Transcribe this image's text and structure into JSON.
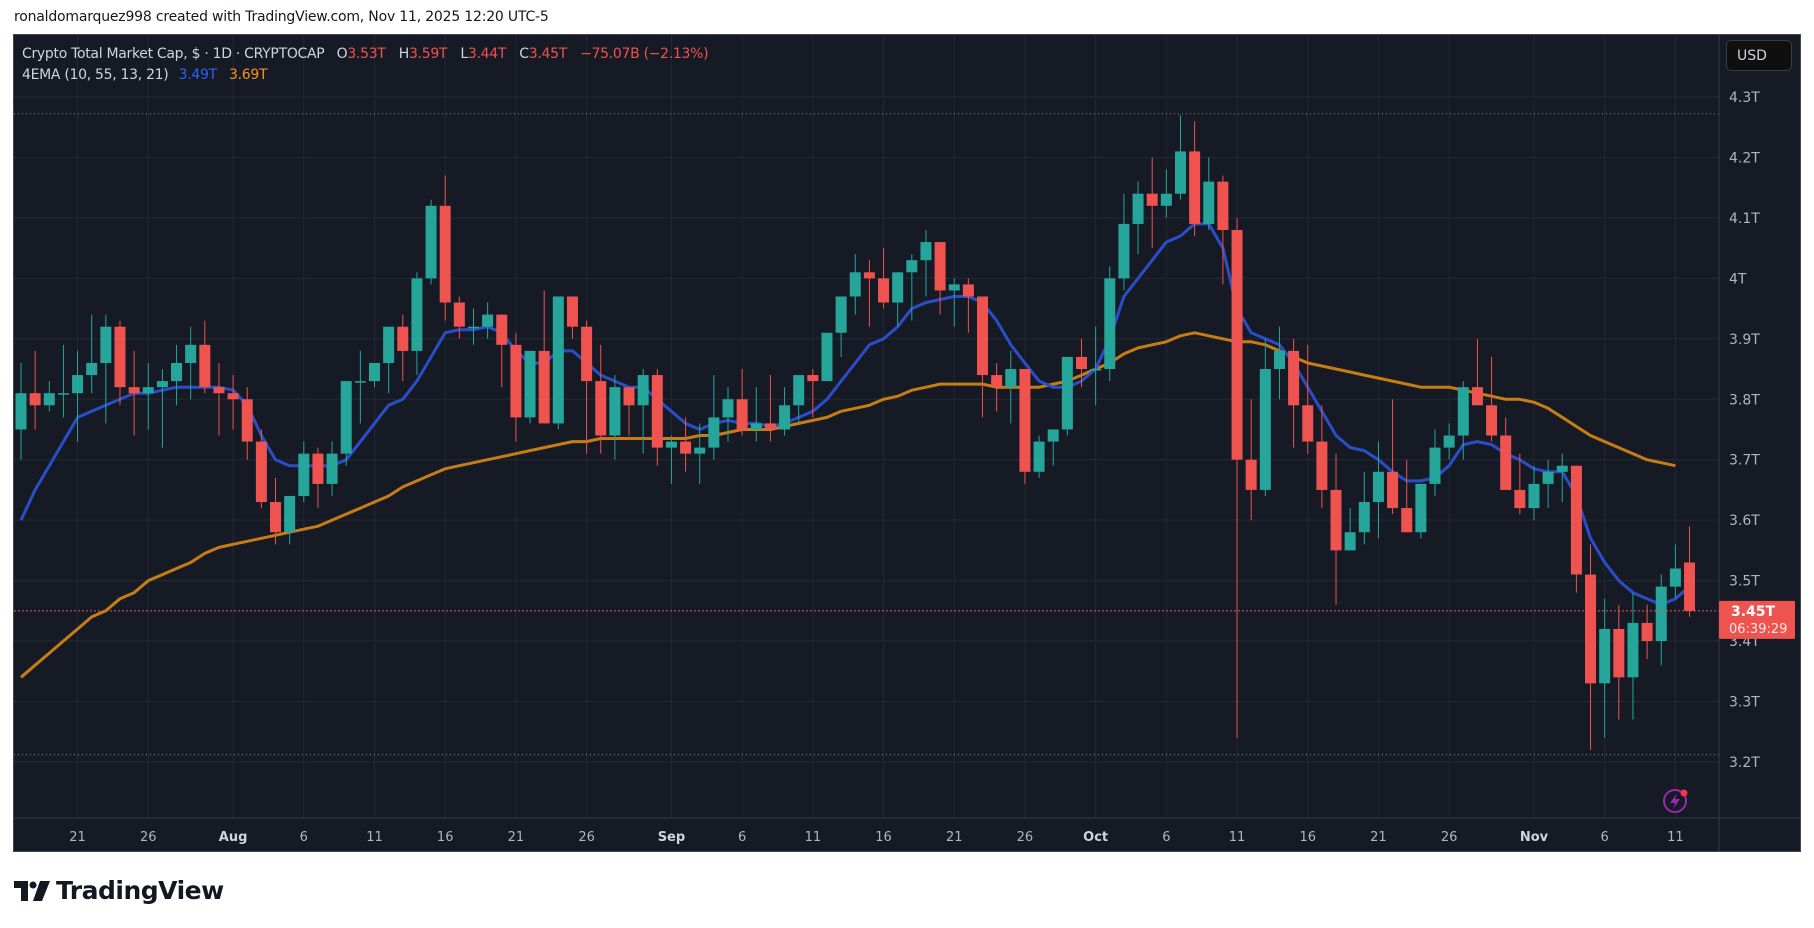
{
  "credit": "ronaldomarquez998 created with TradingView.com, Nov 11, 2025 12:20 UTC-5",
  "legend": {
    "symbol": "Crypto Total Market Cap, $ · 1D · CRYPTOCAP",
    "o_label": "O",
    "o": "3.53T",
    "h_label": "H",
    "h": "3.59T",
    "l_label": "L",
    "l": "3.44T",
    "c_label": "C",
    "c": "3.45T",
    "change": "−75.07B (−2.13%)",
    "indicator": "4EMA (10, 55, 13, 21)",
    "ema_fast": "3.49T",
    "ema_slow": "3.69T"
  },
  "currency_button": "USD",
  "price_label": {
    "value": "3.45T",
    "countdown": "06:39:29"
  },
  "logo_text": "TradingView",
  "colors": {
    "background": "#161a25",
    "grid": "#242833",
    "up": "#26a69a",
    "down": "#ef5350",
    "ema_fast": "#2a4ec9",
    "ema_slow": "#c67d16",
    "axis_text": "#b2b5be",
    "price_line": "#ef5350"
  },
  "chart_data": {
    "type": "candlestick",
    "title": "Crypto Total Market Cap, $ · 1D · CRYPTOCAP",
    "ylabel": "USD",
    "ylim": [
      3.11,
      4.36
    ],
    "y_ticks": [
      "4.3T",
      "4.2T",
      "4.1T",
      "4T",
      "3.9T",
      "3.8T",
      "3.7T",
      "3.6T",
      "3.5T",
      "3.4T",
      "3.3T",
      "3.2T"
    ],
    "y_tick_values": [
      4.3,
      4.2,
      4.1,
      4.0,
      3.9,
      3.8,
      3.7,
      3.6,
      3.5,
      3.4,
      3.3,
      3.2
    ],
    "x_ticks": [
      {
        "label": "21",
        "day": 4
      },
      {
        "label": "26",
        "day": 9
      },
      {
        "label": "Aug",
        "day": 15,
        "bold": true
      },
      {
        "label": "6",
        "day": 20
      },
      {
        "label": "11",
        "day": 25
      },
      {
        "label": "16",
        "day": 30
      },
      {
        "label": "21",
        "day": 35
      },
      {
        "label": "26",
        "day": 40
      },
      {
        "label": "Sep",
        "day": 46,
        "bold": true
      },
      {
        "label": "6",
        "day": 51
      },
      {
        "label": "11",
        "day": 56
      },
      {
        "label": "16",
        "day": 61
      },
      {
        "label": "21",
        "day": 66
      },
      {
        "label": "26",
        "day": 71
      },
      {
        "label": "Oct",
        "day": 76,
        "bold": true
      },
      {
        "label": "6",
        "day": 81
      },
      {
        "label": "11",
        "day": 86
      },
      {
        "label": "16",
        "day": 91
      },
      {
        "label": "21",
        "day": 96
      },
      {
        "label": "26",
        "day": 101
      },
      {
        "label": "Nov",
        "day": 107,
        "bold": true
      },
      {
        "label": "6",
        "day": 112
      },
      {
        "label": "11",
        "day": 117
      }
    ],
    "start_date": "Jul 17",
    "end_date": "Nov 11",
    "high_line": 4.272,
    "low_line": 3.212,
    "last_price": 3.45,
    "candles": [
      [
        3.75,
        3.86,
        3.7,
        3.81
      ],
      [
        3.81,
        3.88,
        3.75,
        3.79
      ],
      [
        3.79,
        3.83,
        3.78,
        3.81
      ],
      [
        3.81,
        3.89,
        3.77,
        3.81
      ],
      [
        3.81,
        3.88,
        3.73,
        3.84
      ],
      [
        3.84,
        3.94,
        3.81,
        3.86
      ],
      [
        3.86,
        3.94,
        3.76,
        3.92
      ],
      [
        3.92,
        3.93,
        3.79,
        3.82
      ],
      [
        3.82,
        3.88,
        3.74,
        3.81
      ],
      [
        3.81,
        3.86,
        3.75,
        3.82
      ],
      [
        3.82,
        3.85,
        3.72,
        3.83
      ],
      [
        3.83,
        3.89,
        3.79,
        3.86
      ],
      [
        3.86,
        3.92,
        3.8,
        3.89
      ],
      [
        3.89,
        3.93,
        3.81,
        3.82
      ],
      [
        3.82,
        3.86,
        3.74,
        3.81
      ],
      [
        3.81,
        3.84,
        3.75,
        3.8
      ],
      [
        3.8,
        3.82,
        3.7,
        3.73
      ],
      [
        3.73,
        3.75,
        3.62,
        3.63
      ],
      [
        3.63,
        3.67,
        3.56,
        3.58
      ],
      [
        3.58,
        3.62,
        3.56,
        3.64
      ],
      [
        3.64,
        3.73,
        3.63,
        3.71
      ],
      [
        3.71,
        3.72,
        3.62,
        3.66
      ],
      [
        3.66,
        3.73,
        3.64,
        3.71
      ],
      [
        3.71,
        3.82,
        3.69,
        3.83
      ],
      [
        3.83,
        3.88,
        3.76,
        3.83
      ],
      [
        3.83,
        3.86,
        3.82,
        3.86
      ],
      [
        3.86,
        3.91,
        3.81,
        3.92
      ],
      [
        3.92,
        3.94,
        3.83,
        3.88
      ],
      [
        3.88,
        4.01,
        3.84,
        4.0
      ],
      [
        4.0,
        4.13,
        3.99,
        4.12
      ],
      [
        4.12,
        4.17,
        3.93,
        3.96
      ],
      [
        3.96,
        3.97,
        3.9,
        3.92
      ],
      [
        3.92,
        3.95,
        3.89,
        3.92
      ],
      [
        3.92,
        3.96,
        3.9,
        3.94
      ],
      [
        3.94,
        3.94,
        3.82,
        3.89
      ],
      [
        3.89,
        3.91,
        3.73,
        3.77
      ],
      [
        3.77,
        3.87,
        3.76,
        3.88
      ],
      [
        3.88,
        3.98,
        3.76,
        3.76
      ],
      [
        3.76,
        3.86,
        3.75,
        3.97
      ],
      [
        3.97,
        3.97,
        3.9,
        3.92
      ],
      [
        3.92,
        3.93,
        3.71,
        3.83
      ],
      [
        3.83,
        3.89,
        3.71,
        3.74
      ],
      [
        3.74,
        3.84,
        3.7,
        3.82
      ],
      [
        3.82,
        3.81,
        3.74,
        3.79
      ],
      [
        3.79,
        3.85,
        3.71,
        3.84
      ],
      [
        3.84,
        3.85,
        3.69,
        3.72
      ],
      [
        3.72,
        3.74,
        3.66,
        3.73
      ],
      [
        3.73,
        3.77,
        3.68,
        3.71
      ],
      [
        3.71,
        3.76,
        3.66,
        3.72
      ],
      [
        3.72,
        3.84,
        3.7,
        3.77
      ],
      [
        3.77,
        3.82,
        3.73,
        3.8
      ],
      [
        3.8,
        3.85,
        3.74,
        3.75
      ],
      [
        3.75,
        3.82,
        3.73,
        3.76
      ],
      [
        3.76,
        3.84,
        3.73,
        3.75
      ],
      [
        3.75,
        3.82,
        3.74,
        3.79
      ],
      [
        3.79,
        3.83,
        3.76,
        3.84
      ],
      [
        3.84,
        3.85,
        3.77,
        3.83
      ],
      [
        3.83,
        3.91,
        3.83,
        3.91
      ],
      [
        3.91,
        3.96,
        3.87,
        3.97
      ],
      [
        3.97,
        4.04,
        3.94,
        4.01
      ],
      [
        4.01,
        4.03,
        3.92,
        4.0
      ],
      [
        4.0,
        4.05,
        3.95,
        3.96
      ],
      [
        3.96,
        4.01,
        3.92,
        4.01
      ],
      [
        4.01,
        4.04,
        3.93,
        4.03
      ],
      [
        4.03,
        4.08,
        3.97,
        4.06
      ],
      [
        4.06,
        4.05,
        3.94,
        3.98
      ],
      [
        3.98,
        4.0,
        3.92,
        3.99
      ],
      [
        3.99,
        4.0,
        3.91,
        3.97
      ],
      [
        3.97,
        3.97,
        3.77,
        3.84
      ],
      [
        3.84,
        3.86,
        3.78,
        3.82
      ],
      [
        3.82,
        3.88,
        3.76,
        3.85
      ],
      [
        3.85,
        3.85,
        3.66,
        3.68
      ],
      [
        3.68,
        3.74,
        3.67,
        3.73
      ],
      [
        3.73,
        3.74,
        3.69,
        3.75
      ],
      [
        3.75,
        3.84,
        3.74,
        3.87
      ],
      [
        3.87,
        3.9,
        3.82,
        3.85
      ],
      [
        3.85,
        3.92,
        3.79,
        3.85
      ],
      [
        3.85,
        4.02,
        3.83,
        4.0
      ],
      [
        4.0,
        4.14,
        3.98,
        4.09
      ],
      [
        4.09,
        4.16,
        4.04,
        4.14
      ],
      [
        4.14,
        4.2,
        4.05,
        4.12
      ],
      [
        4.12,
        4.18,
        4.1,
        4.14
      ],
      [
        4.14,
        4.27,
        4.13,
        4.21
      ],
      [
        4.21,
        4.26,
        4.07,
        4.09
      ],
      [
        4.09,
        4.2,
        4.08,
        4.16
      ],
      [
        4.16,
        4.17,
        3.99,
        4.08
      ],
      [
        4.08,
        4.1,
        3.24,
        3.7
      ],
      [
        3.7,
        3.8,
        3.6,
        3.65
      ],
      [
        3.65,
        3.9,
        3.64,
        3.85
      ],
      [
        3.85,
        3.92,
        3.8,
        3.88
      ],
      [
        3.88,
        3.9,
        3.72,
        3.79
      ],
      [
        3.79,
        3.89,
        3.71,
        3.73
      ],
      [
        3.73,
        3.79,
        3.62,
        3.65
      ],
      [
        3.65,
        3.71,
        3.46,
        3.55
      ],
      [
        3.55,
        3.62,
        3.55,
        3.58
      ],
      [
        3.58,
        3.68,
        3.56,
        3.63
      ],
      [
        3.63,
        3.73,
        3.57,
        3.68
      ],
      [
        3.68,
        3.8,
        3.61,
        3.62
      ],
      [
        3.62,
        3.7,
        3.58,
        3.58
      ],
      [
        3.58,
        3.66,
        3.57,
        3.66
      ],
      [
        3.66,
        3.75,
        3.64,
        3.72
      ],
      [
        3.72,
        3.76,
        3.7,
        3.74
      ],
      [
        3.74,
        3.83,
        3.7,
        3.82
      ],
      [
        3.82,
        3.9,
        3.8,
        3.79
      ],
      [
        3.79,
        3.87,
        3.73,
        3.74
      ],
      [
        3.74,
        3.77,
        3.65,
        3.65
      ],
      [
        3.65,
        3.71,
        3.61,
        3.62
      ],
      [
        3.62,
        3.69,
        3.6,
        3.66
      ],
      [
        3.66,
        3.7,
        3.62,
        3.68
      ],
      [
        3.68,
        3.71,
        3.63,
        3.69
      ],
      [
        3.69,
        3.69,
        3.48,
        3.51
      ],
      [
        3.51,
        3.56,
        3.22,
        3.33
      ],
      [
        3.33,
        3.47,
        3.24,
        3.42
      ],
      [
        3.42,
        3.46,
        3.27,
        3.34
      ],
      [
        3.34,
        3.48,
        3.27,
        3.43
      ],
      [
        3.43,
        3.46,
        3.37,
        3.4
      ],
      [
        3.4,
        3.51,
        3.36,
        3.49
      ],
      [
        3.49,
        3.56,
        3.47,
        3.52
      ],
      [
        3.53,
        3.59,
        3.44,
        3.45
      ]
    ],
    "ema_fast_values": [
      3.6,
      3.65,
      3.69,
      3.73,
      3.77,
      3.78,
      3.79,
      3.8,
      3.81,
      3.81,
      3.815,
      3.82,
      3.82,
      3.82,
      3.82,
      3.815,
      3.79,
      3.74,
      3.7,
      3.69,
      3.69,
      3.69,
      3.69,
      3.7,
      3.73,
      3.76,
      3.79,
      3.8,
      3.83,
      3.87,
      3.91,
      3.915,
      3.915,
      3.92,
      3.91,
      3.88,
      3.86,
      3.86,
      3.88,
      3.88,
      3.86,
      3.84,
      3.83,
      3.82,
      3.82,
      3.8,
      3.78,
      3.76,
      3.75,
      3.76,
      3.765,
      3.76,
      3.76,
      3.755,
      3.76,
      3.77,
      3.78,
      3.8,
      3.83,
      3.86,
      3.89,
      3.9,
      3.92,
      3.95,
      3.96,
      3.965,
      3.97,
      3.97,
      3.96,
      3.93,
      3.89,
      3.86,
      3.83,
      3.82,
      3.82,
      3.83,
      3.85,
      3.9,
      3.97,
      4.0,
      4.03,
      4.06,
      4.07,
      4.09,
      4.09,
      4.05,
      3.95,
      3.91,
      3.9,
      3.89,
      3.86,
      3.82,
      3.78,
      3.74,
      3.72,
      3.715,
      3.7,
      3.68,
      3.665,
      3.665,
      3.67,
      3.69,
      3.725,
      3.73,
      3.725,
      3.71,
      3.7,
      3.685,
      3.68,
      3.68,
      3.64,
      3.57,
      3.53,
      3.5,
      3.48,
      3.47,
      3.46,
      3.47,
      3.49
    ],
    "ema_slow_values": [
      3.34,
      3.36,
      3.38,
      3.4,
      3.42,
      3.44,
      3.45,
      3.47,
      3.48,
      3.5,
      3.51,
      3.52,
      3.53,
      3.545,
      3.555,
      3.56,
      3.565,
      3.57,
      3.575,
      3.58,
      3.585,
      3.59,
      3.6,
      3.61,
      3.62,
      3.63,
      3.64,
      3.655,
      3.665,
      3.675,
      3.685,
      3.69,
      3.695,
      3.7,
      3.705,
      3.71,
      3.715,
      3.72,
      3.725,
      3.73,
      3.73,
      3.735,
      3.735,
      3.735,
      3.735,
      3.735,
      3.735,
      3.735,
      3.74,
      3.74,
      3.745,
      3.75,
      3.75,
      3.75,
      3.755,
      3.76,
      3.765,
      3.77,
      3.78,
      3.785,
      3.79,
      3.8,
      3.805,
      3.815,
      3.82,
      3.825,
      3.825,
      3.825,
      3.825,
      3.82,
      3.82,
      3.82,
      3.82,
      3.825,
      3.83,
      3.84,
      3.85,
      3.86,
      3.875,
      3.885,
      3.89,
      3.895,
      3.905,
      3.91,
      3.905,
      3.9,
      3.895,
      3.895,
      3.89,
      3.88,
      3.87,
      3.86,
      3.855,
      3.85,
      3.845,
      3.84,
      3.835,
      3.83,
      3.825,
      3.82,
      3.82,
      3.82,
      3.815,
      3.81,
      3.805,
      3.8,
      3.8,
      3.795,
      3.785,
      3.77,
      3.755,
      3.74,
      3.73,
      3.72,
      3.71,
      3.7,
      3.695,
      3.69
    ]
  }
}
